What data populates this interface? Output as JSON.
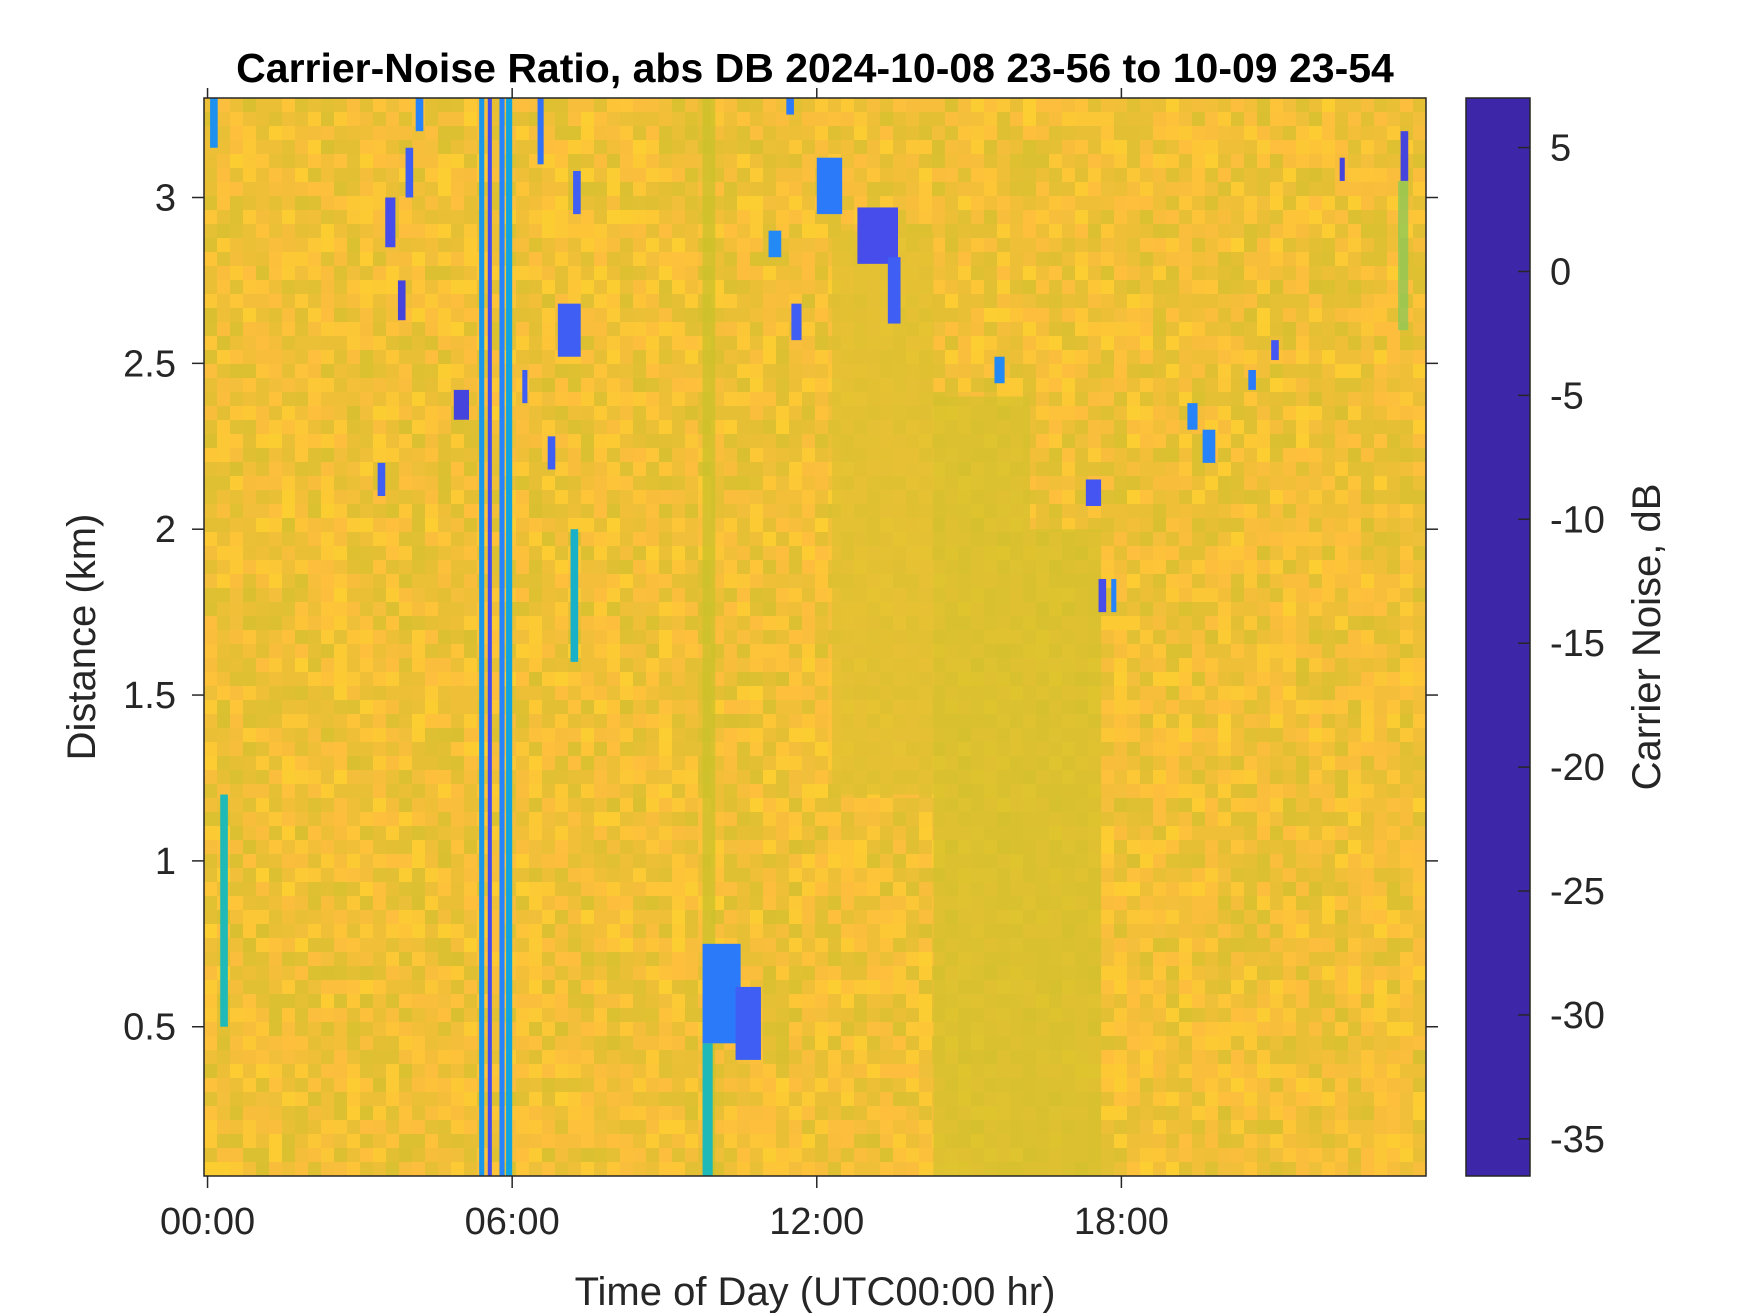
{
  "chart_data": {
    "type": "heatmap",
    "title": "Carrier-Noise Ratio, abs DB 2024-10-08 23-56 to 10-09 23-54",
    "xlabel": "Time of Day (UTC00:00 hr)",
    "ylabel": "Distance (km)",
    "colorbar_label": "Carrier Noise, dB",
    "x_unit": "hour",
    "xlim": [
      -0.07,
      24.0
    ],
    "ylim": [
      0.05,
      3.3
    ],
    "clim": [
      -36.5,
      7
    ],
    "colormap": "parula",
    "background_level_db": -30,
    "x_ticks": [
      0,
      6,
      12,
      18
    ],
    "x_tick_labels": [
      "00:00",
      "06:00",
      "12:00",
      "18:00"
    ],
    "y_ticks": [
      0.5,
      1,
      1.5,
      2,
      2.5,
      3
    ],
    "y_tick_labels": [
      "0.5",
      "1",
      "1.5",
      "2",
      "2.5",
      "3"
    ],
    "colorbar_ticks": [
      5,
      0,
      -5,
      -10,
      -15,
      -20,
      -25,
      -30,
      -35
    ],
    "colorbar_tick_labels": [
      "5",
      "0",
      "-5",
      "-10",
      "-15",
      "-20",
      "-25",
      "-30",
      "-35"
    ],
    "features": [
      {
        "t_start": 5.35,
        "t_end": 5.45,
        "d_start": 0.05,
        "d_end": 3.3,
        "value": -7
      },
      {
        "t_start": 5.52,
        "t_end": 5.6,
        "d_start": 0.05,
        "d_end": 3.3,
        "value": 2
      },
      {
        "t_start": 5.75,
        "t_end": 5.85,
        "d_start": 0.05,
        "d_end": 3.3,
        "value": -4
      },
      {
        "t_start": 5.88,
        "t_end": 6.0,
        "d_start": 0.05,
        "d_end": 3.3,
        "value": -9
      },
      {
        "t_start": 9.75,
        "t_end": 10.0,
        "d_start": 0.05,
        "d_end": 3.3,
        "value": -26
      },
      {
        "t_start": 9.75,
        "t_end": 9.95,
        "d_start": 0.05,
        "d_end": 0.45,
        "value": -14
      },
      {
        "t_start": 9.75,
        "t_end": 10.5,
        "d_start": 0.45,
        "d_end": 0.75,
        "value": -3
      },
      {
        "t_start": 10.4,
        "t_end": 10.9,
        "d_start": 0.4,
        "d_end": 0.62,
        "value": 0
      },
      {
        "t_start": 14.3,
        "t_end": 16.2,
        "d_start": 0.05,
        "d_end": 2.4,
        "value": -27
      },
      {
        "t_start": 16.2,
        "t_end": 17.6,
        "d_start": 0.05,
        "d_end": 2.0,
        "value": -27
      },
      {
        "t_start": 12.3,
        "t_end": 14.3,
        "d_start": 1.2,
        "d_end": 2.9,
        "value": -28
      },
      {
        "t_start": 0.25,
        "t_end": 0.4,
        "d_start": 0.5,
        "d_end": 1.2,
        "value": -14
      },
      {
        "t_start": 0.05,
        "t_end": 0.2,
        "d_start": 3.15,
        "d_end": 3.3,
        "value": -6
      },
      {
        "t_start": 3.5,
        "t_end": 3.7,
        "d_start": 2.85,
        "d_end": 3.0,
        "value": 2
      },
      {
        "t_start": 3.9,
        "t_end": 4.05,
        "d_start": 3.0,
        "d_end": 3.15,
        "value": 0
      },
      {
        "t_start": 4.1,
        "t_end": 4.25,
        "d_start": 3.2,
        "d_end": 3.3,
        "value": -4
      },
      {
        "t_start": 3.75,
        "t_end": 3.9,
        "d_start": 2.63,
        "d_end": 2.75,
        "value": 3
      },
      {
        "t_start": 3.35,
        "t_end": 3.5,
        "d_start": 2.1,
        "d_end": 2.2,
        "value": 0
      },
      {
        "t_start": 4.85,
        "t_end": 5.15,
        "d_start": 2.33,
        "d_end": 2.42,
        "value": 3
      },
      {
        "t_start": 6.5,
        "t_end": 6.62,
        "d_start": 3.1,
        "d_end": 3.3,
        "value": -2
      },
      {
        "t_start": 7.2,
        "t_end": 7.35,
        "d_start": 2.95,
        "d_end": 3.08,
        "value": 0
      },
      {
        "t_start": 6.9,
        "t_end": 7.35,
        "d_start": 2.52,
        "d_end": 2.68,
        "value": 0
      },
      {
        "t_start": 6.2,
        "t_end": 6.3,
        "d_start": 2.38,
        "d_end": 2.48,
        "value": 0
      },
      {
        "t_start": 6.7,
        "t_end": 6.85,
        "d_start": 2.18,
        "d_end": 2.28,
        "value": 0
      },
      {
        "t_start": 7.15,
        "t_end": 7.3,
        "d_start": 1.6,
        "d_end": 2.0,
        "value": -12
      },
      {
        "t_start": 11.05,
        "t_end": 11.3,
        "d_start": 2.82,
        "d_end": 2.9,
        "value": -5
      },
      {
        "t_start": 11.5,
        "t_end": 11.7,
        "d_start": 2.57,
        "d_end": 2.68,
        "value": 0
      },
      {
        "t_start": 12.0,
        "t_end": 12.5,
        "d_start": 2.95,
        "d_end": 3.12,
        "value": -3
      },
      {
        "t_start": 12.8,
        "t_end": 13.6,
        "d_start": 2.8,
        "d_end": 2.97,
        "value": 2
      },
      {
        "t_start": 13.4,
        "t_end": 13.65,
        "d_start": 2.62,
        "d_end": 2.82,
        "value": 0
      },
      {
        "t_start": 11.4,
        "t_end": 11.55,
        "d_start": 3.25,
        "d_end": 3.3,
        "value": -3
      },
      {
        "t_start": 15.5,
        "t_end": 15.7,
        "d_start": 2.44,
        "d_end": 2.52,
        "value": -5
      },
      {
        "t_start": 17.3,
        "t_end": 17.6,
        "d_start": 2.07,
        "d_end": 2.15,
        "value": 1
      },
      {
        "t_start": 17.55,
        "t_end": 17.7,
        "d_start": 1.75,
        "d_end": 1.85,
        "value": 2
      },
      {
        "t_start": 17.8,
        "t_end": 17.9,
        "d_start": 1.75,
        "d_end": 1.85,
        "value": -4
      },
      {
        "t_start": 19.3,
        "t_end": 19.5,
        "d_start": 2.3,
        "d_end": 2.38,
        "value": -4
      },
      {
        "t_start": 19.6,
        "t_end": 19.85,
        "d_start": 2.2,
        "d_end": 2.3,
        "value": -4
      },
      {
        "t_start": 20.5,
        "t_end": 20.65,
        "d_start": 2.42,
        "d_end": 2.48,
        "value": -3
      },
      {
        "t_start": 20.95,
        "t_end": 21.1,
        "d_start": 2.51,
        "d_end": 2.57,
        "value": 1
      },
      {
        "t_start": 22.3,
        "t_end": 22.4,
        "d_start": 3.05,
        "d_end": 3.12,
        "value": 3
      },
      {
        "t_start": 23.5,
        "t_end": 23.65,
        "d_start": 3.05,
        "d_end": 3.2,
        "value": 3
      },
      {
        "t_start": 23.45,
        "t_end": 23.65,
        "d_start": 2.6,
        "d_end": 3.05,
        "value": -22
      }
    ]
  }
}
